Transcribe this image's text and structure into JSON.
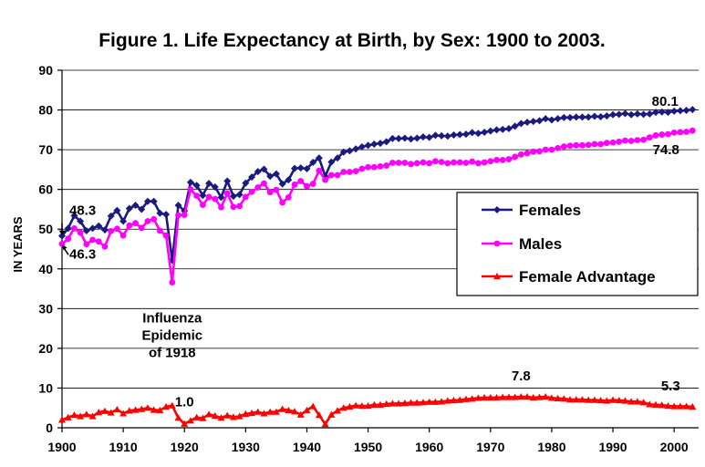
{
  "chart_data": {
    "type": "line",
    "title": "Figure 1. Life Expectancy at Birth, by Sex: 1900 to 2003.",
    "xlabel": "",
    "ylabel": "IN YEARS",
    "xlim": [
      1900,
      2003
    ],
    "ylim": [
      0,
      90
    ],
    "xticks": [
      1900,
      1910,
      1920,
      1930,
      1940,
      1950,
      1960,
      1970,
      1980,
      1990,
      2000
    ],
    "yticks": [
      0,
      10,
      20,
      30,
      40,
      50,
      60,
      70,
      80,
      90
    ],
    "grid": true,
    "legend_position": "right",
    "series": [
      {
        "name": "Females",
        "color": "#1a1a80",
        "marker": "diamond",
        "x": [
          1900,
          1901,
          1902,
          1903,
          1904,
          1905,
          1906,
          1907,
          1908,
          1909,
          1910,
          1911,
          1912,
          1913,
          1914,
          1915,
          1916,
          1917,
          1918,
          1919,
          1920,
          1921,
          1922,
          1923,
          1924,
          1925,
          1926,
          1927,
          1928,
          1929,
          1930,
          1931,
          1932,
          1933,
          1934,
          1935,
          1936,
          1937,
          1938,
          1939,
          1940,
          1941,
          1942,
          1943,
          1944,
          1945,
          1946,
          1947,
          1948,
          1949,
          1950,
          1951,
          1952,
          1953,
          1954,
          1955,
          1956,
          1957,
          1958,
          1959,
          1960,
          1961,
          1962,
          1963,
          1964,
          1965,
          1966,
          1967,
          1968,
          1969,
          1970,
          1971,
          1972,
          1973,
          1974,
          1975,
          1976,
          1977,
          1978,
          1979,
          1980,
          1981,
          1982,
          1983,
          1984,
          1985,
          1986,
          1987,
          1988,
          1989,
          1990,
          1991,
          1992,
          1993,
          1994,
          1995,
          1996,
          1997,
          1998,
          1999,
          2000,
          2001,
          2002,
          2003
        ],
        "values": [
          48.3,
          50.2,
          53.4,
          52.0,
          49.6,
          50.2,
          50.8,
          49.8,
          53.3,
          54.7,
          52.0,
          55.2,
          56.0,
          55.0,
          57.0,
          57.0,
          54.0,
          53.7,
          42.2,
          56.0,
          54.6,
          61.8,
          61.0,
          58.5,
          61.5,
          60.6,
          58.0,
          62.1,
          58.3,
          58.7,
          61.6,
          63.1,
          64.5,
          65.1,
          63.3,
          63.9,
          61.4,
          62.4,
          65.3,
          65.4,
          65.2,
          66.8,
          67.9,
          63.3,
          66.9,
          67.9,
          69.4,
          69.7,
          70.2,
          70.7,
          71.1,
          71.4,
          71.6,
          72.0,
          72.8,
          72.8,
          72.9,
          72.7,
          72.9,
          73.2,
          73.1,
          73.6,
          73.5,
          73.4,
          73.7,
          73.8,
          73.9,
          74.3,
          74.1,
          74.4,
          74.7,
          75.0,
          75.1,
          75.3,
          75.9,
          76.6,
          76.9,
          77.1,
          77.3,
          77.8,
          77.5,
          77.8,
          78.1,
          78.1,
          78.2,
          78.2,
          78.2,
          78.4,
          78.3,
          78.5,
          78.8,
          78.9,
          79.1,
          78.8,
          79.0,
          78.9,
          79.0,
          79.4,
          79.5,
          79.4,
          79.7,
          79.8,
          79.9,
          80.1
        ]
      },
      {
        "name": "Males",
        "color": "#ff00ff",
        "marker": "circle",
        "x": [
          1900,
          1901,
          1902,
          1903,
          1904,
          1905,
          1906,
          1907,
          1908,
          1909,
          1910,
          1911,
          1912,
          1913,
          1914,
          1915,
          1916,
          1917,
          1918,
          1919,
          1920,
          1921,
          1922,
          1923,
          1924,
          1925,
          1926,
          1927,
          1928,
          1929,
          1930,
          1931,
          1932,
          1933,
          1934,
          1935,
          1936,
          1937,
          1938,
          1939,
          1940,
          1941,
          1942,
          1943,
          1944,
          1945,
          1946,
          1947,
          1948,
          1949,
          1950,
          1951,
          1952,
          1953,
          1954,
          1955,
          1956,
          1957,
          1958,
          1959,
          1960,
          1961,
          1962,
          1963,
          1964,
          1965,
          1966,
          1967,
          1968,
          1969,
          1970,
          1971,
          1972,
          1973,
          1974,
          1975,
          1976,
          1977,
          1978,
          1979,
          1980,
          1981,
          1982,
          1983,
          1984,
          1985,
          1986,
          1987,
          1988,
          1989,
          1990,
          1991,
          1992,
          1993,
          1994,
          1995,
          1996,
          1997,
          1998,
          1999,
          2000,
          2001,
          2002,
          2003
        ],
        "values": [
          46.3,
          47.6,
          50.2,
          49.1,
          46.2,
          47.3,
          46.9,
          45.6,
          49.5,
          50.1,
          48.4,
          50.9,
          51.5,
          50.3,
          52.0,
          52.5,
          49.6,
          48.4,
          36.6,
          53.5,
          53.6,
          60.0,
          58.4,
          56.1,
          58.1,
          57.6,
          55.5,
          59.0,
          55.6,
          55.8,
          58.1,
          59.4,
          60.5,
          61.5,
          59.3,
          59.9,
          56.7,
          58.0,
          61.2,
          62.1,
          60.8,
          61.4,
          64.7,
          62.4,
          63.6,
          63.6,
          64.4,
          64.4,
          64.6,
          65.2,
          65.6,
          65.6,
          65.8,
          66.0,
          66.7,
          66.7,
          66.7,
          66.4,
          66.6,
          66.8,
          66.6,
          67.1,
          66.9,
          66.6,
          66.8,
          66.8,
          66.7,
          67.0,
          66.6,
          66.8,
          67.1,
          67.4,
          67.4,
          67.6,
          68.2,
          68.8,
          69.1,
          69.5,
          69.6,
          70.0,
          70.0,
          70.4,
          70.8,
          71.0,
          71.1,
          71.1,
          71.2,
          71.4,
          71.4,
          71.7,
          71.8,
          72.0,
          72.3,
          72.2,
          72.4,
          72.5,
          73.1,
          73.6,
          73.8,
          73.9,
          74.3,
          74.4,
          74.5,
          74.8
        ]
      },
      {
        "name": "Female Advantage",
        "color": "#ff0000",
        "marker": "triangle",
        "x": [
          1900,
          1901,
          1902,
          1903,
          1904,
          1905,
          1906,
          1907,
          1908,
          1909,
          1910,
          1911,
          1912,
          1913,
          1914,
          1915,
          1916,
          1917,
          1918,
          1919,
          1920,
          1921,
          1922,
          1923,
          1924,
          1925,
          1926,
          1927,
          1928,
          1929,
          1930,
          1931,
          1932,
          1933,
          1934,
          1935,
          1936,
          1937,
          1938,
          1939,
          1940,
          1941,
          1942,
          1943,
          1944,
          1945,
          1946,
          1947,
          1948,
          1949,
          1950,
          1951,
          1952,
          1953,
          1954,
          1955,
          1956,
          1957,
          1958,
          1959,
          1960,
          1961,
          1962,
          1963,
          1964,
          1965,
          1966,
          1967,
          1968,
          1969,
          1970,
          1971,
          1972,
          1973,
          1974,
          1975,
          1976,
          1977,
          1978,
          1979,
          1980,
          1981,
          1982,
          1983,
          1984,
          1985,
          1986,
          1987,
          1988,
          1989,
          1990,
          1991,
          1992,
          1993,
          1994,
          1995,
          1996,
          1997,
          1998,
          1999,
          2000,
          2001,
          2002,
          2003
        ],
        "values": [
          2.0,
          2.6,
          3.2,
          2.9,
          3.4,
          2.9,
          3.9,
          4.2,
          3.8,
          4.6,
          3.6,
          4.3,
          4.5,
          4.7,
          5.0,
          4.5,
          4.4,
          5.3,
          5.6,
          2.5,
          1.0,
          1.8,
          2.6,
          2.4,
          3.4,
          3.0,
          2.5,
          3.1,
          2.7,
          2.9,
          3.5,
          3.7,
          4.0,
          3.6,
          4.0,
          4.0,
          4.7,
          4.4,
          4.1,
          3.3,
          4.4,
          5.4,
          3.2,
          0.9,
          3.3,
          4.3,
          5.0,
          5.3,
          5.6,
          5.5,
          5.5,
          5.8,
          5.8,
          6.0,
          6.1,
          6.1,
          6.2,
          6.3,
          6.3,
          6.4,
          6.5,
          6.5,
          6.6,
          6.8,
          6.9,
          7.0,
          7.2,
          7.3,
          7.5,
          7.6,
          7.6,
          7.6,
          7.7,
          7.7,
          7.7,
          7.8,
          7.8,
          7.6,
          7.7,
          7.8,
          7.5,
          7.4,
          7.3,
          7.1,
          7.1,
          7.1,
          7.0,
          7.0,
          6.9,
          6.8,
          7.0,
          6.9,
          6.8,
          6.6,
          6.6,
          6.4,
          5.9,
          5.8,
          5.7,
          5.5,
          5.4,
          5.4,
          5.4,
          5.3
        ]
      }
    ],
    "annotations": [
      {
        "text": "48.3",
        "x": 1900,
        "y": 48.3,
        "arrow": true
      },
      {
        "text": "46.3",
        "x": 1900,
        "y": 46.3,
        "arrow": true
      },
      {
        "text": "Influenza",
        "x": 1918,
        "y": 36.6
      },
      {
        "text": "Epidemic",
        "x": 1918,
        "y": 36.6
      },
      {
        "text": "of 1918",
        "x": 1918,
        "y": 36.6
      },
      {
        "text": "1.0",
        "x": 1920,
        "y": 1.0
      },
      {
        "text": "7.8",
        "x": 1975,
        "y": 7.8
      },
      {
        "text": "5.3",
        "x": 2003,
        "y": 5.3
      },
      {
        "text": "80.1",
        "x": 2003,
        "y": 80.1
      },
      {
        "text": "74.8",
        "x": 2003,
        "y": 74.8
      }
    ]
  }
}
